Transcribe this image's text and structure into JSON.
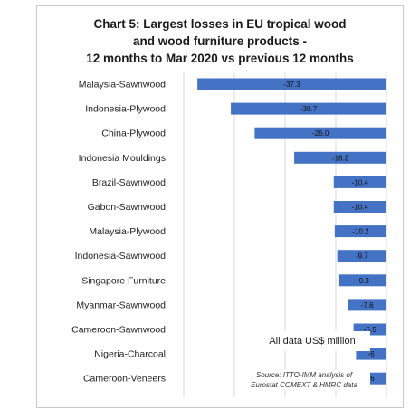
{
  "title_lines": [
    "Chart 5: Largest losses in EU tropical wood",
    "and wood furniture products -",
    "12 months to Mar 2020 vs previous 12 months"
  ],
  "note": "All data US$ million",
  "source_lines": [
    "Source: ITTO-IMM analysis of",
    "Eurostat COMEXT & HMRC data"
  ],
  "colors": {
    "bar": "#4472c4",
    "grid": "#d9d9d9"
  },
  "chart_data": {
    "type": "bar",
    "orientation": "horizontal",
    "title": "Chart 5: Largest losses in EU tropical wood and wood furniture products - 12 months to Mar 2020 vs previous 12 months",
    "categories": [
      "Malaysia-Sawnwood",
      "Indonesia-Plywood",
      "China-Plywood",
      "Indonesia Mouldings",
      "Brazil-Sawnwood",
      "Gabon-Sawnwood",
      "Malaysia-Plywood",
      "Indonesia-Sawnwood",
      "Singapore Furniture",
      "Myanmar-Sawnwood",
      "Cameroon-Sawnwood",
      "Nigeria-Charcoal",
      "Cameroon-Veneers"
    ],
    "values": [
      -37.3,
      -30.7,
      -26.0,
      -18.2,
      -10.4,
      -10.4,
      -10.2,
      -9.7,
      -9.3,
      -7.6,
      -6.5,
      -6,
      -6
    ],
    "value_labels": [
      "-37.3",
      "-30.7",
      "-26.0",
      "-18.2",
      "-10.4",
      "-10.4",
      "-10.2",
      "-9.7",
      "-9.3",
      "-7.6",
      "-6.5",
      "-6",
      "-6"
    ],
    "xlim": [
      -40,
      0
    ],
    "grid": true,
    "legend": "none"
  }
}
